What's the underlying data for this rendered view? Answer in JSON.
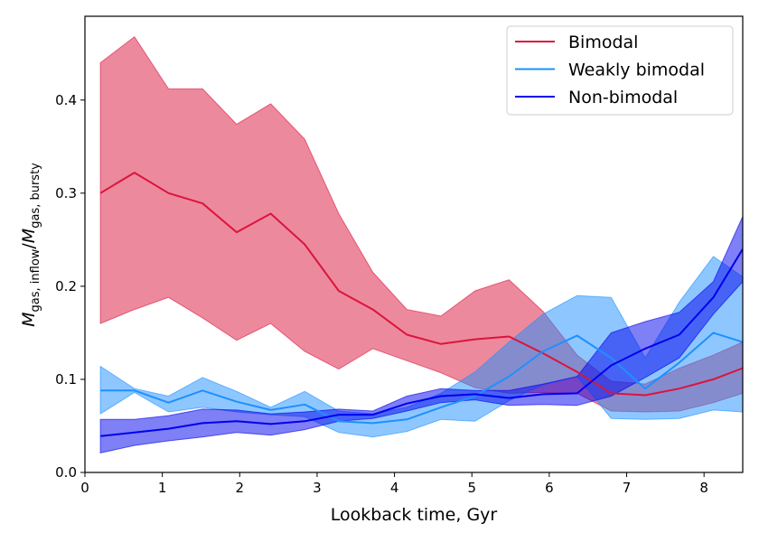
{
  "chart_data": {
    "type": "line",
    "title": "",
    "xlabel": "Lookback time, Gyr",
    "ylabel": {
      "main": "M",
      "sub1": "gas, inflow",
      "slash": "/",
      "main2": "M",
      "sub2": "gas, bursty"
    },
    "xlim": [
      0,
      8.5
    ],
    "ylim": [
      0,
      0.49
    ],
    "xticks": [
      0,
      1,
      2,
      3,
      4,
      5,
      6,
      7,
      8
    ],
    "yticks": [
      0.0,
      0.1,
      0.2,
      0.3,
      0.4
    ],
    "xtick_labels": [
      "0",
      "1",
      "2",
      "3",
      "4",
      "5",
      "6",
      "7",
      "8"
    ],
    "ytick_labels": [
      "0.0",
      "0.1",
      "0.2",
      "0.3",
      "0.4"
    ],
    "grid": false,
    "legend_position": "upper-right",
    "x": [
      0.2,
      0.64,
      1.08,
      1.52,
      1.96,
      2.4,
      2.84,
      3.28,
      3.72,
      4.16,
      4.6,
      5.04,
      5.48,
      5.92,
      6.36,
      6.8,
      7.24,
      7.68,
      8.12,
      8.5
    ],
    "series": [
      {
        "name": "Bimodal",
        "color": "#dc143c",
        "fill": "#dc143c",
        "fill_opacity": 0.5,
        "values": [
          0.3,
          0.322,
          0.3,
          0.289,
          0.258,
          0.278,
          0.245,
          0.195,
          0.175,
          0.148,
          0.138,
          0.143,
          0.146,
          0.128,
          0.108,
          0.085,
          0.083,
          0.09,
          0.1,
          0.112
        ],
        "upper": [
          0.44,
          0.468,
          0.412,
          0.412,
          0.374,
          0.396,
          0.358,
          0.278,
          0.215,
          0.175,
          0.168,
          0.195,
          0.207,
          0.173,
          0.126,
          0.098,
          0.095,
          0.112,
          0.126,
          0.14
        ],
        "lower": [
          0.16,
          0.175,
          0.188,
          0.166,
          0.142,
          0.16,
          0.13,
          0.111,
          0.133,
          0.12,
          0.107,
          0.091,
          0.085,
          0.086,
          0.085,
          0.066,
          0.065,
          0.066,
          0.075,
          0.085
        ]
      },
      {
        "name": "Weakly bimodal",
        "color": "#1e90ff",
        "fill": "#1e90ff",
        "fill_opacity": 0.5,
        "values": [
          0.088,
          0.088,
          0.075,
          0.088,
          0.076,
          0.067,
          0.073,
          0.055,
          0.053,
          0.057,
          0.07,
          0.082,
          0.103,
          0.13,
          0.147,
          0.123,
          0.09,
          0.118,
          0.15,
          0.14
        ],
        "upper": [
          0.114,
          0.09,
          0.082,
          0.102,
          0.087,
          0.07,
          0.087,
          0.066,
          0.063,
          0.07,
          0.085,
          0.108,
          0.14,
          0.17,
          0.19,
          0.188,
          0.123,
          0.183,
          0.232,
          0.21
        ],
        "lower": [
          0.063,
          0.086,
          0.065,
          0.07,
          0.065,
          0.062,
          0.06,
          0.043,
          0.038,
          0.044,
          0.057,
          0.055,
          0.077,
          0.094,
          0.103,
          0.058,
          0.057,
          0.058,
          0.067,
          0.065
        ]
      },
      {
        "name": "Non-bimodal",
        "color": "#0000ee",
        "fill": "#0000ee",
        "fill_opacity": 0.5,
        "values": [
          0.039,
          0.043,
          0.047,
          0.053,
          0.055,
          0.052,
          0.055,
          0.062,
          0.062,
          0.074,
          0.082,
          0.084,
          0.08,
          0.084,
          0.085,
          0.115,
          0.133,
          0.148,
          0.188,
          0.24
        ],
        "upper": [
          0.057,
          0.057,
          0.061,
          0.068,
          0.067,
          0.063,
          0.065,
          0.068,
          0.066,
          0.082,
          0.09,
          0.088,
          0.088,
          0.095,
          0.103,
          0.15,
          0.162,
          0.172,
          0.205,
          0.275
        ],
        "lower": [
          0.021,
          0.029,
          0.034,
          0.038,
          0.043,
          0.04,
          0.046,
          0.055,
          0.058,
          0.066,
          0.075,
          0.078,
          0.072,
          0.073,
          0.072,
          0.082,
          0.102,
          0.123,
          0.17,
          0.205
        ]
      }
    ]
  }
}
